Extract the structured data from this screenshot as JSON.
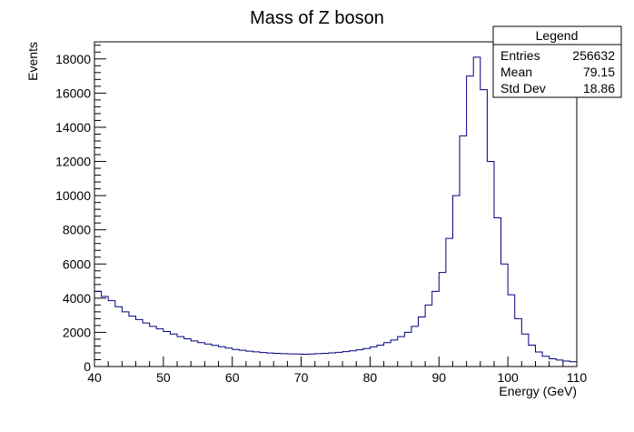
{
  "chart_data": {
    "type": "histogram",
    "title": "Mass of Z boson",
    "xlabel": "Energy (GeV)",
    "ylabel": "Events",
    "xlim": [
      40,
      110
    ],
    "ylim": [
      0,
      19000
    ],
    "grid": false,
    "line_color": "#000080",
    "bin_width": 1,
    "x": [
      40,
      41,
      42,
      43,
      44,
      45,
      46,
      47,
      48,
      49,
      50,
      51,
      52,
      53,
      54,
      55,
      56,
      57,
      58,
      59,
      60,
      61,
      62,
      63,
      64,
      65,
      66,
      67,
      68,
      69,
      70,
      71,
      72,
      73,
      74,
      75,
      76,
      77,
      78,
      79,
      80,
      81,
      82,
      83,
      84,
      85,
      86,
      87,
      88,
      89,
      90,
      91,
      92,
      93,
      94,
      95,
      96,
      97,
      98,
      99,
      100,
      101,
      102,
      103,
      104,
      105,
      106,
      107,
      108,
      109
    ],
    "values": [
      4400,
      4100,
      3850,
      3500,
      3200,
      2950,
      2750,
      2550,
      2350,
      2200,
      2050,
      1900,
      1750,
      1620,
      1500,
      1400,
      1320,
      1240,
      1160,
      1080,
      1000,
      950,
      900,
      860,
      820,
      790,
      770,
      750,
      740,
      730,
      720,
      730,
      750,
      770,
      800,
      830,
      870,
      920,
      980,
      1050,
      1150,
      1250,
      1400,
      1550,
      1750,
      2000,
      2350,
      2900,
      3600,
      4400,
      5500,
      7500,
      10000,
      13500,
      17000,
      18100,
      16200,
      12000,
      8700,
      6000,
      4200,
      2800,
      1900,
      1250,
      850,
      600,
      450,
      380,
      320,
      280
    ],
    "xticks": [
      40,
      50,
      60,
      70,
      80,
      90,
      100,
      110
    ],
    "yticks": [
      0,
      2000,
      4000,
      6000,
      8000,
      10000,
      12000,
      14000,
      16000,
      18000
    ],
    "legend": {
      "title": "Legend",
      "rows": [
        {
          "label": "Entries",
          "value": "256632"
        },
        {
          "label": "Mean",
          "value": "79.15"
        },
        {
          "label": "Std Dev",
          "value": "18.86"
        }
      ]
    }
  }
}
